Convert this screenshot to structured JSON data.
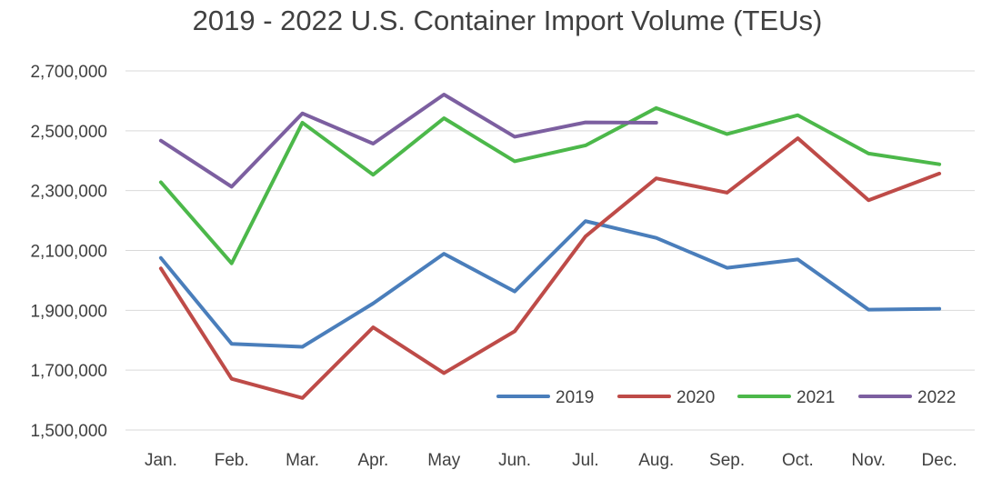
{
  "chart_data": {
    "type": "line",
    "title": "2019 - 2022 U.S. Container Import Volume (TEUs)",
    "xlabel": "",
    "ylabel": "",
    "categories": [
      "Jan.",
      "Feb.",
      "Mar.",
      "Apr.",
      "May",
      "Jun.",
      "Jul.",
      "Aug.",
      "Sep.",
      "Oct.",
      "Nov.",
      "Dec."
    ],
    "ylim": [
      1500000,
      2700000
    ],
    "yticks": [
      1500000,
      1700000,
      1900000,
      2100000,
      2300000,
      2500000,
      2700000
    ],
    "ytick_labels": [
      "1,500,000",
      "1,700,000",
      "1,900,000",
      "2,100,000",
      "2,300,000",
      "2,500,000",
      "2,700,000"
    ],
    "grid": true,
    "legend_position": "bottom-right",
    "series": [
      {
        "name": "2019",
        "color": "#4a7ebb",
        "values": [
          2075000,
          1788000,
          1778000,
          1923000,
          2089000,
          1963000,
          2198000,
          2142000,
          2042000,
          2070000,
          1902000,
          1905000
        ]
      },
      {
        "name": "2020",
        "color": "#be4b48",
        "values": [
          2040000,
          1671000,
          1607000,
          1843000,
          1690000,
          1830000,
          2147000,
          2341000,
          2293000,
          2475000,
          2268000,
          2357000
        ]
      },
      {
        "name": "2021",
        "color": "#4cb84a",
        "values": [
          2328000,
          2057000,
          2527000,
          2353000,
          2542000,
          2398000,
          2451000,
          2576000,
          2489000,
          2552000,
          2424000,
          2388000
        ]
      },
      {
        "name": "2022",
        "color": "#7c5fa0",
        "values": [
          2467000,
          2313000,
          2558000,
          2457000,
          2621000,
          2480000,
          2528000,
          2527000,
          null,
          null,
          null,
          null
        ]
      }
    ]
  }
}
